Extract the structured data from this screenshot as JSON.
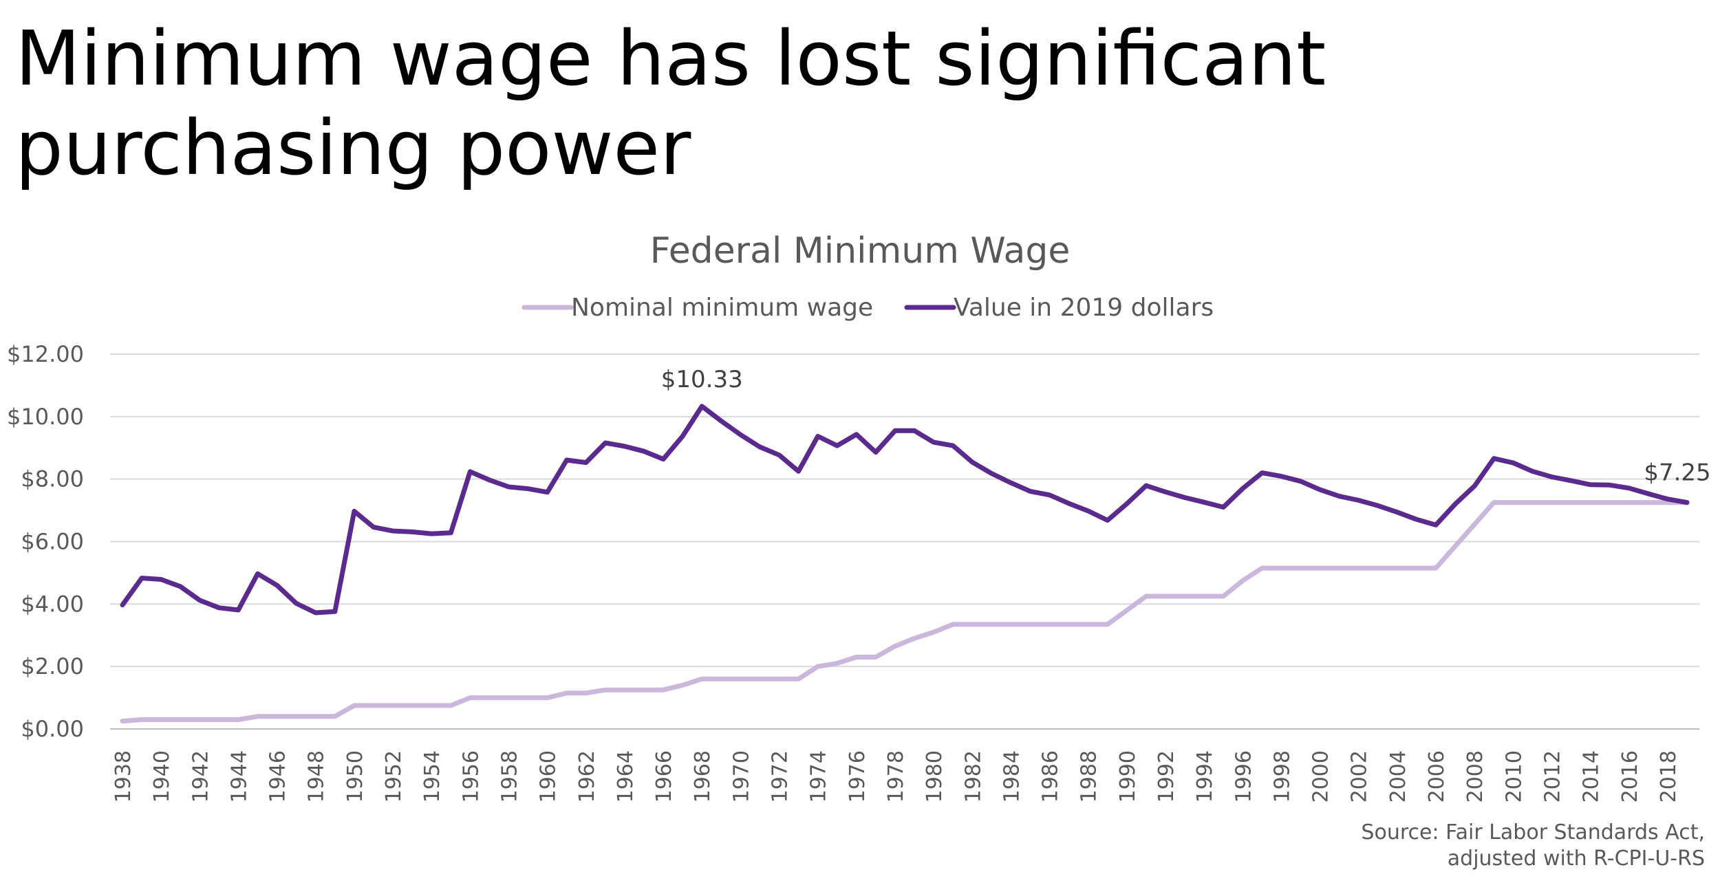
{
  "slide": {
    "title_lines": [
      "Minimum wage has lost significant",
      "purchasing power"
    ],
    "source_lines": [
      "Source: Fair Labor Standards Act,",
      "adjusted with R-CPI-U-RS"
    ]
  },
  "chart_data": {
    "type": "line",
    "title": "Federal Minimum Wage",
    "xlabel": "",
    "ylabel": "",
    "ylim": [
      0,
      12
    ],
    "y_ticks": [
      "$0.00",
      "$2.00",
      "$4.00",
      "$6.00",
      "$8.00",
      "$10.00",
      "$12.00"
    ],
    "x_tick_labels": [
      "1938",
      "1940",
      "1942",
      "1944",
      "1946",
      "1948",
      "1950",
      "1952",
      "1954",
      "1956",
      "1958",
      "1960",
      "1962",
      "1964",
      "1966",
      "1968",
      "1970",
      "1972",
      "1974",
      "1976",
      "1978",
      "1980",
      "1982",
      "1984",
      "1986",
      "1988",
      "1990",
      "1992",
      "1994",
      "1996",
      "1998",
      "2000",
      "2002",
      "2004",
      "2006",
      "2008",
      "2010",
      "2012",
      "2014",
      "2016",
      "2018"
    ],
    "grid": true,
    "legend_position": "top-center",
    "x": [
      1938,
      1939,
      1940,
      1941,
      1942,
      1943,
      1944,
      1945,
      1946,
      1947,
      1948,
      1949,
      1950,
      1951,
      1952,
      1953,
      1954,
      1955,
      1956,
      1957,
      1958,
      1959,
      1960,
      1961,
      1962,
      1963,
      1964,
      1965,
      1966,
      1967,
      1968,
      1969,
      1970,
      1971,
      1972,
      1973,
      1974,
      1975,
      1976,
      1977,
      1978,
      1979,
      1980,
      1981,
      1982,
      1983,
      1984,
      1985,
      1986,
      1987,
      1988,
      1989,
      1990,
      1991,
      1992,
      1993,
      1994,
      1995,
      1996,
      1997,
      1998,
      1999,
      2000,
      2001,
      2002,
      2003,
      2004,
      2005,
      2006,
      2007,
      2008,
      2009,
      2010,
      2011,
      2012,
      2013,
      2014,
      2015,
      2016,
      2017,
      2018,
      2019
    ],
    "series": [
      {
        "name": "Nominal minimum wage",
        "color": "#cbb6dc",
        "values": [
          0.25,
          0.3,
          0.3,
          0.3,
          0.3,
          0.3,
          0.3,
          0.4,
          0.4,
          0.4,
          0.4,
          0.4,
          0.75,
          0.75,
          0.75,
          0.75,
          0.75,
          0.75,
          1.0,
          1.0,
          1.0,
          1.0,
          1.0,
          1.15,
          1.15,
          1.25,
          1.25,
          1.25,
          1.25,
          1.4,
          1.6,
          1.6,
          1.6,
          1.6,
          1.6,
          1.6,
          2.0,
          2.1,
          2.3,
          2.3,
          2.65,
          2.9,
          3.1,
          3.35,
          3.35,
          3.35,
          3.35,
          3.35,
          3.35,
          3.35,
          3.35,
          3.35,
          3.8,
          4.25,
          4.25,
          4.25,
          4.25,
          4.25,
          4.75,
          5.15,
          5.15,
          5.15,
          5.15,
          5.15,
          5.15,
          5.15,
          5.15,
          5.15,
          5.15,
          5.85,
          6.55,
          7.25,
          7.25,
          7.25,
          7.25,
          7.25,
          7.25,
          7.25,
          7.25,
          7.25,
          7.25,
          7.25
        ]
      },
      {
        "name": "Value in 2019 dollars",
        "color": "#5b2a8e",
        "values": [
          3.97,
          4.83,
          4.79,
          4.56,
          4.12,
          3.88,
          3.81,
          4.97,
          4.6,
          4.02,
          3.72,
          3.76,
          6.97,
          6.46,
          6.34,
          6.31,
          6.25,
          6.28,
          8.24,
          7.97,
          7.75,
          7.69,
          7.58,
          8.61,
          8.53,
          9.16,
          9.05,
          8.89,
          8.64,
          9.37,
          10.33,
          9.86,
          9.42,
          9.03,
          8.77,
          8.25,
          9.37,
          9.07,
          9.43,
          8.86,
          9.55,
          9.55,
          9.18,
          9.07,
          8.54,
          8.18,
          7.88,
          7.61,
          7.49,
          7.22,
          6.98,
          6.68,
          7.21,
          7.79,
          7.59,
          7.41,
          7.26,
          7.1,
          7.7,
          8.2,
          8.09,
          7.93,
          7.66,
          7.45,
          7.32,
          7.15,
          6.94,
          6.71,
          6.53,
          7.2,
          7.78,
          8.66,
          8.52,
          8.25,
          8.07,
          7.95,
          7.82,
          7.81,
          7.71,
          7.53,
          7.36,
          7.25
        ]
      }
    ],
    "annotations": [
      {
        "text": "$10.33",
        "x": 1968,
        "y": 10.33
      },
      {
        "text": "$7.25",
        "x": 2019,
        "y": 7.25
      }
    ]
  }
}
